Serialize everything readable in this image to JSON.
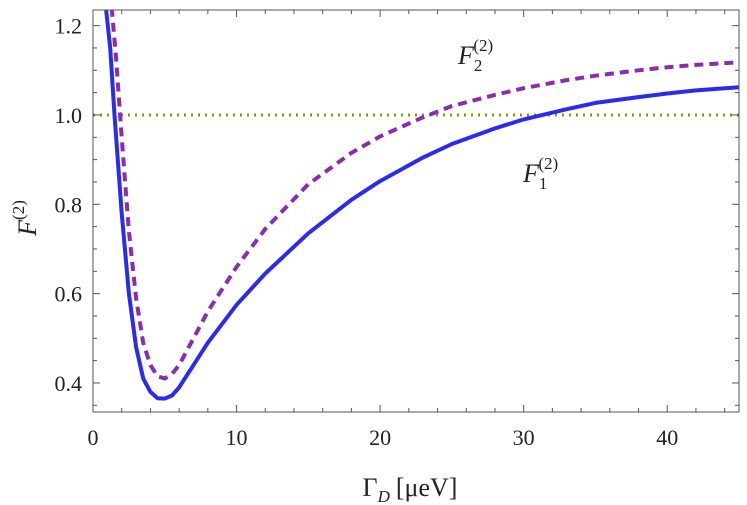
{
  "chart_data": {
    "type": "line",
    "xlabel": {
      "main": "Γ",
      "sub": "D",
      "unit": "[μeV]"
    },
    "ylabel": {
      "main": "F",
      "sup": "(2)"
    },
    "xlim": [
      0,
      45
    ],
    "ylim": [
      0.335,
      1.235
    ],
    "x_ticks": [
      0,
      10,
      20,
      30,
      40
    ],
    "x_tick_labels": [
      "0",
      "10",
      "20",
      "30",
      "40"
    ],
    "y_ticks": [
      0.4,
      0.6,
      0.8,
      1.0,
      1.2
    ],
    "y_tick_labels": [
      "0.4",
      "0.6",
      "0.8",
      "1.0",
      "1.2"
    ],
    "grid": false,
    "series": [
      {
        "key": "F1",
        "label": {
          "main": "F",
          "sub": "1",
          "sup": "(2)"
        },
        "color": "#2b2bf0",
        "style": "solid",
        "x": [
          0.9,
          1.2,
          1.5,
          2.0,
          2.5,
          3.0,
          3.5,
          4.0,
          4.5,
          5.0,
          5.5,
          6.0,
          7.0,
          8.0,
          10.0,
          12.0,
          15.0,
          18.0,
          20.0,
          23.0,
          25.0,
          28.0,
          30.0,
          33.0,
          35.0,
          38.0,
          40.0,
          42.0,
          45.0
        ],
        "y": [
          1.24,
          1.15,
          1.0,
          0.78,
          0.6,
          0.48,
          0.41,
          0.38,
          0.366,
          0.365,
          0.372,
          0.39,
          0.44,
          0.49,
          0.575,
          0.645,
          0.735,
          0.81,
          0.852,
          0.905,
          0.935,
          0.97,
          0.99,
          1.013,
          1.027,
          1.04,
          1.048,
          1.055,
          1.062
        ]
      },
      {
        "key": "F2",
        "label": {
          "main": "F",
          "sub": "2",
          "sup": "(2)"
        },
        "color": "#8b2bb0",
        "style": "dashed",
        "x": [
          1.3,
          1.6,
          2.0,
          2.5,
          3.0,
          3.5,
          4.0,
          4.5,
          5.0,
          5.5,
          6.0,
          7.0,
          8.0,
          10.0,
          12.0,
          15.0,
          18.0,
          20.0,
          23.0,
          25.0,
          28.0,
          30.0,
          33.0,
          35.0,
          38.0,
          40.0,
          42.0,
          45.0
        ],
        "y": [
          1.24,
          1.13,
          0.95,
          0.74,
          0.59,
          0.49,
          0.44,
          0.415,
          0.41,
          0.42,
          0.44,
          0.5,
          0.56,
          0.66,
          0.745,
          0.845,
          0.915,
          0.952,
          0.995,
          1.02,
          1.045,
          1.06,
          1.078,
          1.088,
          1.1,
          1.107,
          1.112,
          1.118
        ]
      },
      {
        "key": "ref",
        "label": null,
        "color": "#8a9a00",
        "style": "dotted",
        "x": [
          0,
          45
        ],
        "y": [
          1.0,
          1.0
        ]
      }
    ]
  }
}
